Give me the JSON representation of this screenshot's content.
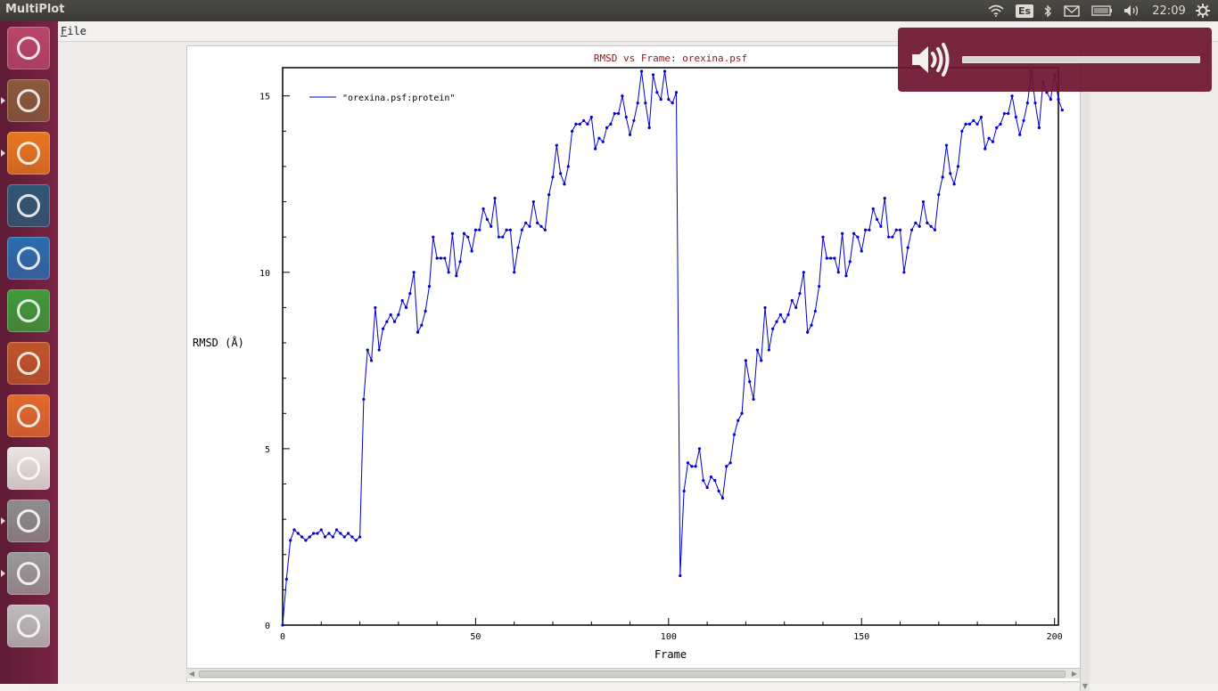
{
  "panel": {
    "app_title": "MultiPlot",
    "keyboard_layout": "Es",
    "clock": "22:09",
    "icons": [
      "wifi-icon",
      "bluetooth-icon",
      "mail-icon",
      "battery-icon",
      "volume-icon",
      "settings-gear-icon"
    ]
  },
  "launcher": {
    "items": [
      {
        "name": "ubuntu-dash",
        "icon": "ubuntu-logo-icon",
        "color": "#b8466a"
      },
      {
        "name": "files",
        "icon": "file-cabinet-icon",
        "color": "#8a5a3a",
        "running": true
      },
      {
        "name": "firefox",
        "icon": "firefox-icon",
        "color": "#e8771f",
        "running": true
      },
      {
        "name": "steam",
        "icon": "steam-icon",
        "color": "#2d5876"
      },
      {
        "name": "libreoffice-writer",
        "icon": "writer-doc-icon",
        "color": "#2a6db0"
      },
      {
        "name": "libreoffice-calc",
        "icon": "calc-sheet-icon",
        "color": "#3f9b3a"
      },
      {
        "name": "libreoffice-impress",
        "icon": "impress-slides-icon",
        "color": "#c0552a"
      },
      {
        "name": "software-center",
        "icon": "shopping-bag-icon",
        "color": "#e26a2c"
      },
      {
        "name": "amazon",
        "icon": "amazon-logo-icon",
        "color": "#e9e6e2"
      },
      {
        "name": "system-tools-stack",
        "icon": "terminal-stack-icon",
        "color": "#8d8d8d",
        "running": true
      },
      {
        "name": "help",
        "icon": "help-question-icon",
        "color": "#9a9a9a",
        "running": true
      },
      {
        "name": "workspaces",
        "icon": "workspace-stack-icon",
        "color": "#bdbdbd"
      }
    ]
  },
  "menu": {
    "file_label_mnemonic": "F",
    "file_label_rest": "ile"
  },
  "volume_osd": {
    "level": 1.0
  },
  "chart_data": {
    "type": "line",
    "title": "RMSD vs Frame: orexina.psf",
    "xlabel": "Frame",
    "ylabel": "RMSD (Å)",
    "xlim": [
      0,
      201
    ],
    "ylim": [
      0,
      15.8
    ],
    "xticks": [
      0,
      50,
      100,
      150,
      200
    ],
    "yticks": [
      0,
      5,
      10,
      15
    ],
    "grid": false,
    "legend_position": "top-left",
    "series_color": "#0000cc",
    "series": [
      {
        "name": "\"orexina.psf:protein\"",
        "values": [
          0.0,
          1.3,
          2.4,
          2.7,
          2.6,
          2.5,
          2.4,
          2.5,
          2.6,
          2.6,
          2.7,
          2.5,
          2.6,
          2.5,
          2.7,
          2.6,
          2.5,
          2.6,
          2.5,
          2.4,
          2.5,
          6.4,
          7.8,
          7.5,
          9.0,
          7.8,
          8.4,
          8.6,
          8.8,
          8.6,
          8.8,
          9.2,
          9.0,
          9.4,
          10.0,
          8.3,
          8.5,
          8.9,
          9.6,
          11.0,
          10.4,
          10.4,
          10.4,
          10.0,
          11.1,
          9.9,
          10.3,
          11.1,
          11.0,
          10.6,
          11.2,
          11.2,
          11.8,
          11.5,
          11.3,
          12.1,
          11.0,
          11.0,
          11.2,
          11.2,
          10.0,
          10.7,
          11.2,
          11.4,
          11.3,
          12.0,
          11.4,
          11.3,
          11.2,
          12.2,
          12.7,
          13.6,
          12.8,
          12.5,
          13.0,
          14.0,
          14.2,
          14.2,
          14.3,
          14.2,
          14.4,
          13.5,
          13.8,
          13.7,
          14.1,
          14.2,
          14.5,
          14.5,
          15.0,
          14.4,
          13.9,
          14.3,
          14.8,
          15.7,
          14.8,
          14.1,
          15.6,
          15.1,
          14.9,
          15.7,
          14.9,
          14.8,
          15.1,
          1.4,
          3.8,
          4.6,
          4.5,
          4.5,
          5.0,
          4.1,
          3.9,
          4.2,
          4.1,
          3.8,
          3.6,
          4.5,
          4.6,
          5.4,
          5.8,
          6.0,
          7.5,
          6.9,
          6.4,
          7.8,
          7.5,
          9.0,
          7.8,
          8.4,
          8.6,
          8.8,
          8.6,
          8.8,
          9.2,
          9.0,
          9.4,
          10.0,
          8.3,
          8.5,
          8.9,
          9.6,
          11.0,
          10.4,
          10.4,
          10.4,
          10.0,
          11.1,
          9.9,
          10.3,
          11.1,
          11.0,
          10.6,
          11.2,
          11.2,
          11.8,
          11.5,
          11.3,
          12.1,
          11.0,
          11.0,
          11.2,
          11.2,
          10.0,
          10.7,
          11.2,
          11.4,
          11.3,
          12.0,
          11.4,
          11.3,
          11.2,
          12.2,
          12.7,
          13.6,
          12.8,
          12.5,
          13.0,
          14.0,
          14.2,
          14.2,
          14.3,
          14.2,
          14.4,
          13.5,
          13.8,
          13.7,
          14.1,
          14.2,
          14.5,
          14.5,
          15.0,
          14.4,
          13.9,
          14.3,
          14.8,
          15.7,
          14.8,
          14.1,
          15.4,
          15.1,
          14.9,
          15.6,
          14.9,
          14.6
        ]
      }
    ]
  }
}
